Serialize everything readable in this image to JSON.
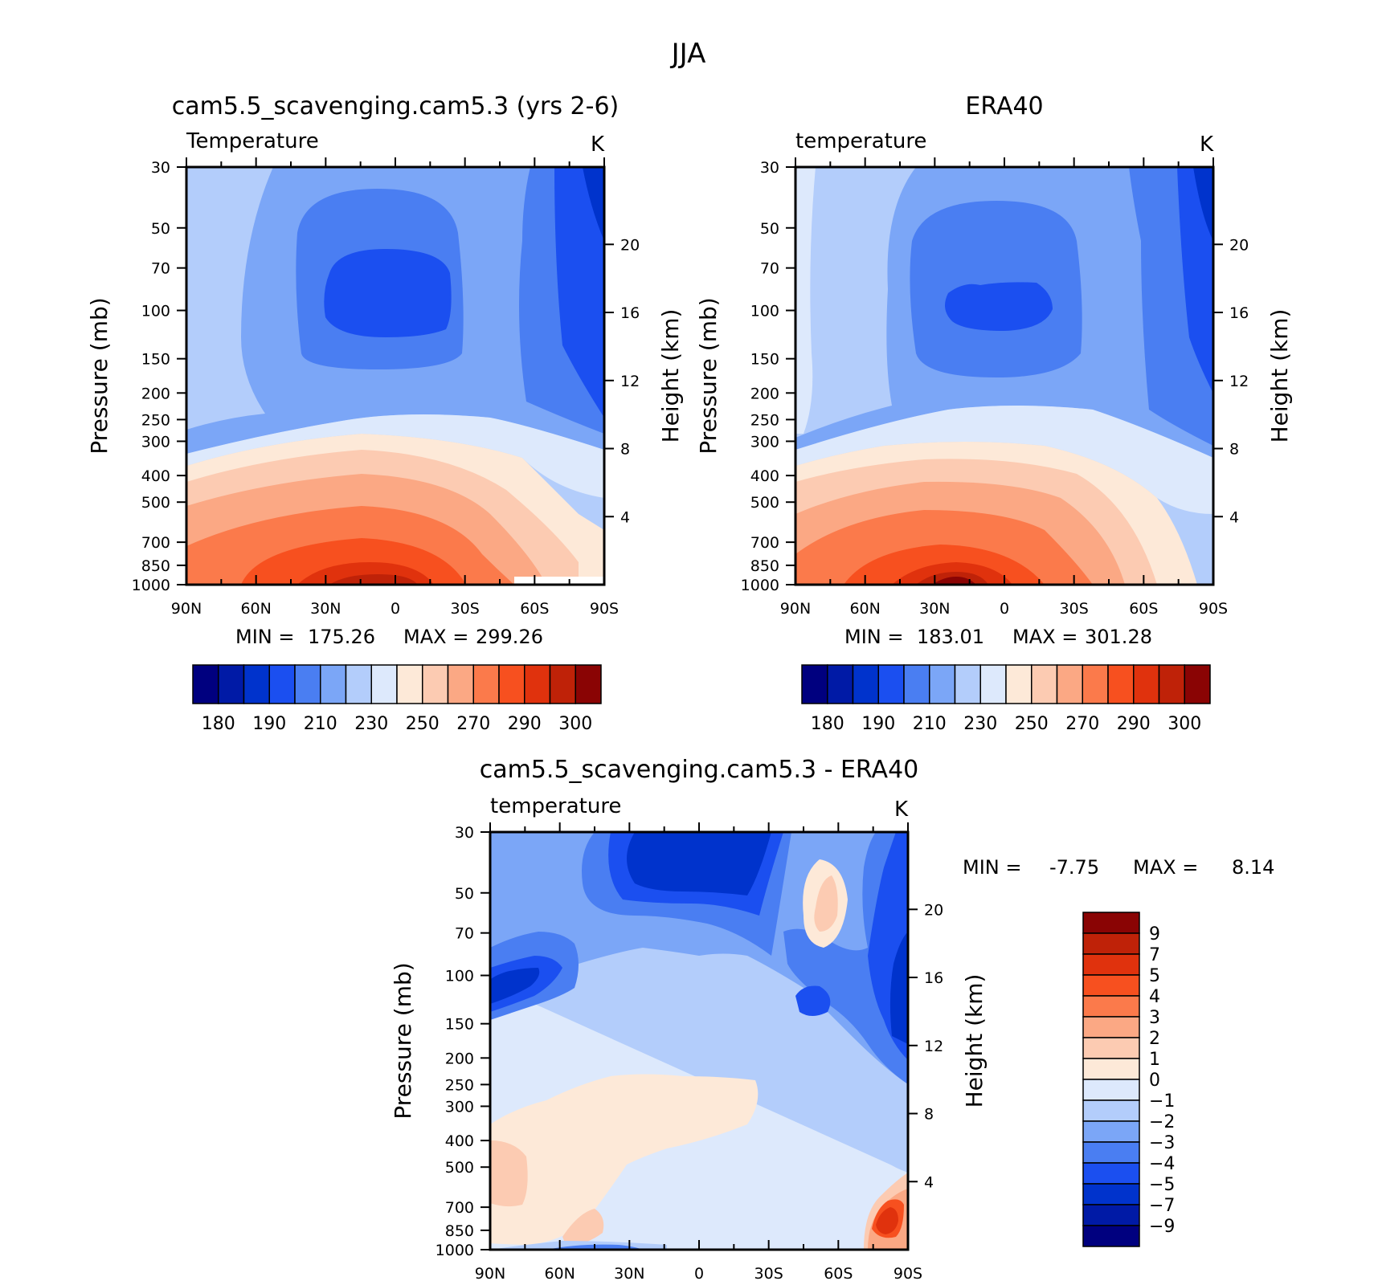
{
  "figure_title": "JJA",
  "colors": {
    "temp_levels": [
      "#00007f",
      "#001aa6",
      "#0033cc",
      "#1b4ff0",
      "#4a7ef2",
      "#7ba6f7",
      "#b3cdfb",
      "#dde9fc",
      "#fde9d8",
      "#fccbb2",
      "#fba884",
      "#fb7a4b",
      "#f7501f",
      "#e0320d",
      "#bf2208",
      "#8a0404"
    ],
    "diff_levels": [
      "#8a0404",
      "#bf2208",
      "#e0320d",
      "#f7501f",
      "#fb7a4b",
      "#fba884",
      "#fccbb2",
      "#fde9d8",
      "#dde9fc",
      "#b3cdfb",
      "#7ba6f7",
      "#4a7ef2",
      "#1b4ff0",
      "#0033cc",
      "#001aa6",
      "#00007f"
    ]
  },
  "chart_data": [
    {
      "type": "heatmap",
      "title": "cam5.5_scavenging.cam5.3 (yrs 2-6)",
      "variable_label": "Temperature",
      "units": "K",
      "ylabel": "Pressure (mb)",
      "ylabel_right": "Height (km)",
      "x_ticks": [
        "90N",
        "60N",
        "30N",
        "0",
        "30S",
        "60S",
        "90S"
      ],
      "y_ticks": [
        "30",
        "50",
        "70",
        "100",
        "150",
        "200",
        "250",
        "300",
        "400",
        "500",
        "700",
        "850",
        "1000"
      ],
      "y_tick_values": [
        30,
        50,
        70,
        100,
        150,
        200,
        250,
        300,
        400,
        500,
        700,
        850,
        1000
      ],
      "height_ticks": [
        "20",
        "16",
        "12",
        "8",
        "4"
      ],
      "height_tick_values": [
        20,
        16,
        12,
        8,
        4
      ],
      "ylim": [
        1000,
        30
      ],
      "xlim": [
        90,
        -90
      ],
      "colorbar_labels": [
        "180",
        "190",
        "210",
        "230",
        "250",
        "270",
        "290",
        "300"
      ],
      "stats": {
        "min_label": "MIN =",
        "min": "175.26",
        "max_label": "MAX =",
        "max": "299.26"
      },
      "field_extent": {
        "min": 175.26,
        "max": 299.26
      }
    },
    {
      "type": "heatmap",
      "title": "ERA40",
      "variable_label": "temperature",
      "units": "K",
      "ylabel": "Pressure (mb)",
      "ylabel_right": "Height (km)",
      "x_ticks": [
        "90N",
        "60N",
        "30N",
        "0",
        "30S",
        "60S",
        "90S"
      ],
      "y_ticks": [
        "30",
        "50",
        "70",
        "100",
        "150",
        "200",
        "250",
        "300",
        "400",
        "500",
        "700",
        "850",
        "1000"
      ],
      "y_tick_values": [
        30,
        50,
        70,
        100,
        150,
        200,
        250,
        300,
        400,
        500,
        700,
        850,
        1000
      ],
      "height_ticks": [
        "20",
        "16",
        "12",
        "8",
        "4"
      ],
      "height_tick_values": [
        20,
        16,
        12,
        8,
        4
      ],
      "ylim": [
        1000,
        30
      ],
      "xlim": [
        90,
        -90
      ],
      "colorbar_labels": [
        "180",
        "190",
        "210",
        "230",
        "250",
        "270",
        "290",
        "300"
      ],
      "stats": {
        "min_label": "MIN =",
        "min": "183.01",
        "max_label": "MAX =",
        "max": "301.28"
      },
      "field_extent": {
        "min": 183.01,
        "max": 301.28
      }
    },
    {
      "type": "heatmap",
      "title": "cam5.5_scavenging.cam5.3 - ERA40",
      "variable_label": "temperature",
      "units": "K",
      "ylabel": "Pressure (mb)",
      "ylabel_right": "Height (km)",
      "x_ticks": [
        "90N",
        "60N",
        "30N",
        "0",
        "30S",
        "60S",
        "90S"
      ],
      "y_ticks": [
        "30",
        "50",
        "70",
        "100",
        "150",
        "200",
        "250",
        "300",
        "400",
        "500",
        "700",
        "850",
        "1000"
      ],
      "y_tick_values": [
        30,
        50,
        70,
        100,
        150,
        200,
        250,
        300,
        400,
        500,
        700,
        850,
        1000
      ],
      "height_ticks": [
        "20",
        "16",
        "12",
        "8",
        "4"
      ],
      "height_tick_values": [
        20,
        16,
        12,
        8,
        4
      ],
      "ylim": [
        1000,
        30
      ],
      "xlim": [
        90,
        -90
      ],
      "colorbar_labels": [
        "9",
        "7",
        "5",
        "4",
        "3",
        "2",
        "1",
        "0",
        "-1",
        "-2",
        "-3",
        "-4",
        "-5",
        "-7",
        "-9"
      ],
      "stats": {
        "min_label": "MIN =",
        "min": "-7.75",
        "max_label": "MAX =",
        "max": "8.14"
      },
      "field_extent": {
        "min": -7.75,
        "max": 8.14
      }
    }
  ]
}
